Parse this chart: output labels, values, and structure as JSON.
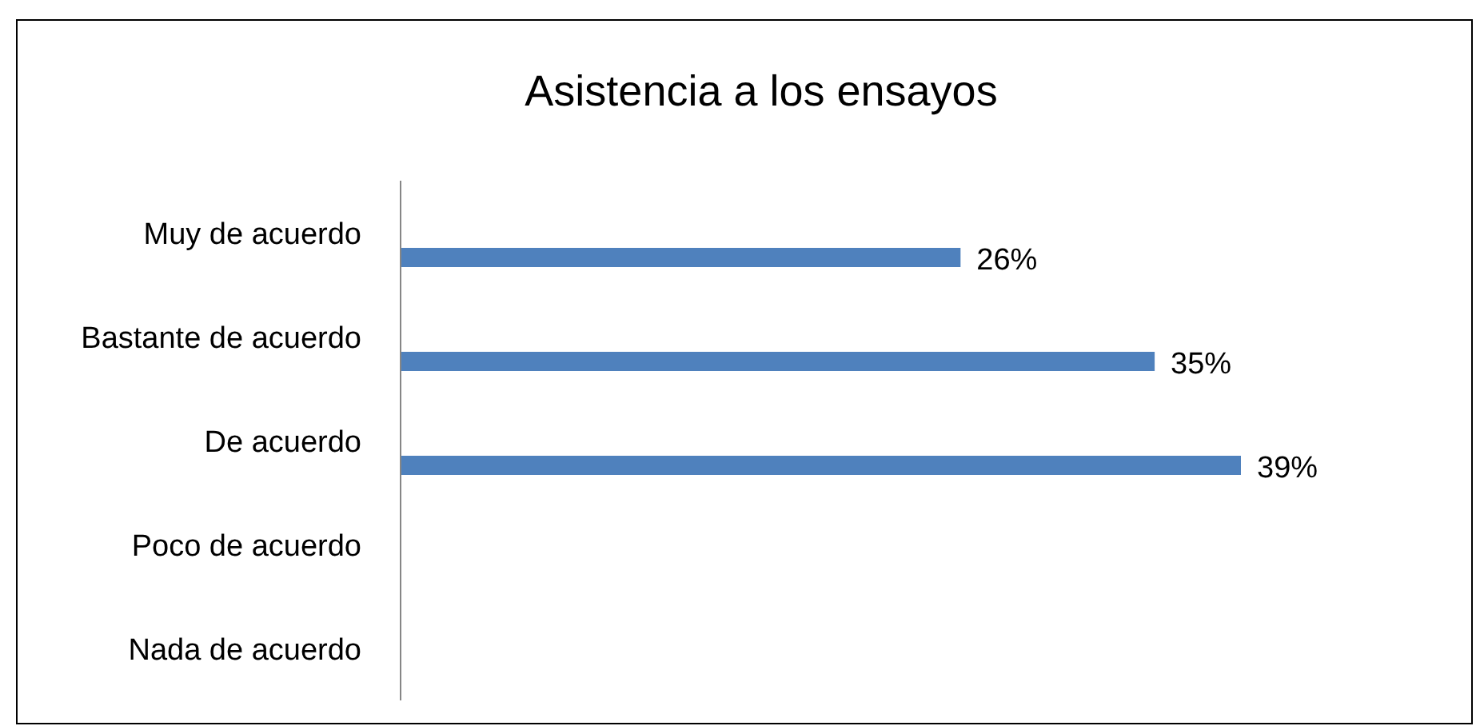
{
  "chart_data": {
    "type": "bar",
    "orientation": "horizontal",
    "title": "Asistencia a los ensayos",
    "categories": [
      "Muy de acuerdo",
      "Bastante de acuerdo",
      "De acuerdo",
      "Poco de acuerdo",
      "Nada de acuerdo"
    ],
    "values": [
      26,
      35,
      39,
      0,
      0
    ],
    "value_labels": [
      "26%",
      "35%",
      "39%",
      null,
      null
    ],
    "color": "#4f81bd"
  }
}
